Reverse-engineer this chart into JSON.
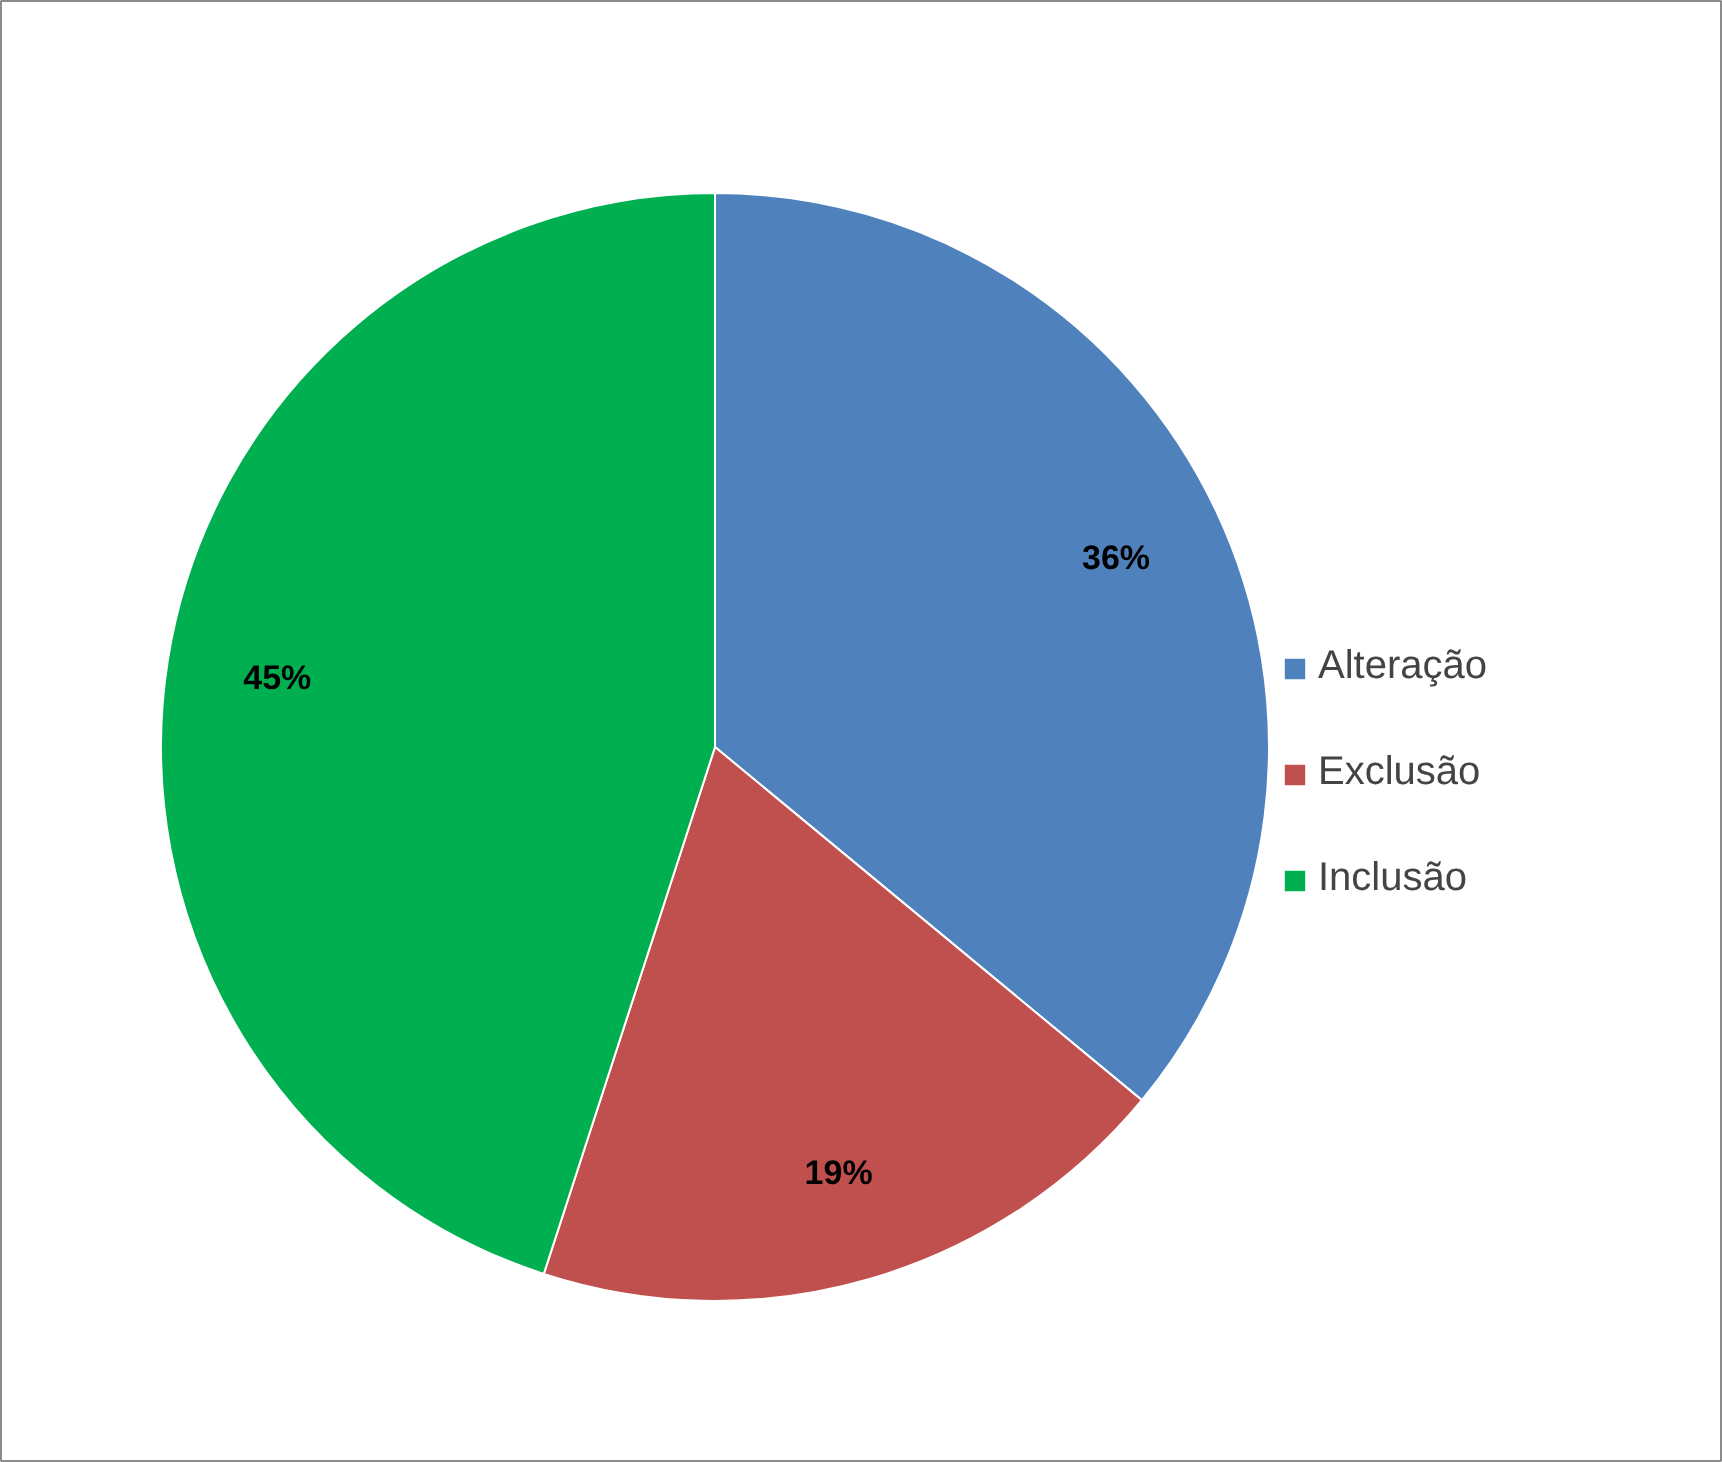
{
  "chart_data": {
    "type": "pie",
    "categories": [
      "Alteração",
      "Exclusão",
      "Inclusão"
    ],
    "values": [
      36,
      19,
      45
    ],
    "colors": [
      "#4f81bd",
      "#c0504d",
      "#00b050"
    ],
    "value_labels": [
      "36%",
      "19%",
      "45%"
    ],
    "legend": "right"
  }
}
